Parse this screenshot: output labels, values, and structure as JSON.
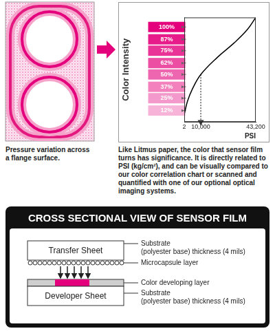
{
  "flange_image": {
    "caption": "Pressure variation across a flange surface."
  },
  "chart_data": {
    "type": "line",
    "x_label": "PSI",
    "y_label": "Color Intensity",
    "x": [
      2,
      2000,
      5000,
      10000,
      20000,
      30000,
      38000,
      43200
    ],
    "values": [
      8,
      22,
      35,
      50,
      68,
      83,
      97,
      110
    ],
    "color": "#000000",
    "xlim": [
      2,
      43200
    ],
    "xticks": [
      2,
      {
        "value": 10000,
        "label": "10,000"
      },
      {
        "value": 43200,
        "label": "43,200"
      }
    ],
    "ylim": [
      0,
      110
    ],
    "yticks": [
      {
        "value": 12,
        "label": "12%"
      },
      {
        "value": 25,
        "label": "25%"
      },
      {
        "value": 37,
        "label": "37%"
      },
      {
        "value": 50,
        "label": "50%"
      },
      {
        "value": 62,
        "label": "62%"
      },
      {
        "value": 75,
        "label": "75%"
      },
      {
        "value": 87,
        "label": "87%"
      },
      {
        "value": 100,
        "label": "100%"
      }
    ],
    "grid": false,
    "reading": {
      "x": 10000,
      "y": 50,
      "line_style": "dotted"
    }
  },
  "chart_caption": "Like Litmus paper, the color that sensor film turns has significance. It is directly related to PSI (kg/cm²), and can be visually compared to our color correlation chart or scanned and quantified with one of our optional optical imaging systems.",
  "cross_section": {
    "title": "CROSS SECTIONAL VIEW OF SENSOR FILM",
    "transfer_sheet": {
      "label": "Transfer Sheet",
      "note": [
        "Substrate",
        "(polyester base) thickness (4 mils)"
      ]
    },
    "microcapsule_layer": "Microcapsule layer",
    "color_developing_layer": "Color developing layer",
    "developer_sheet": {
      "label": "Developer Sheet",
      "note": [
        "Substrate",
        "(polyester base) thickness (4 mils)"
      ]
    }
  }
}
